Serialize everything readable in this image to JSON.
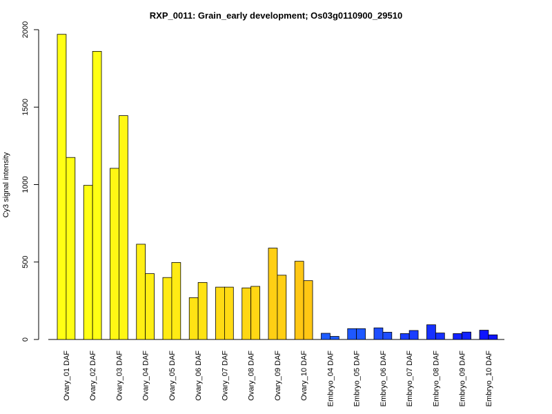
{
  "chart_data": {
    "type": "bar",
    "title": "RXP_0011: Grain_early development; Os03g0110900_29510",
    "xlabel": "",
    "ylabel": "Cy3 signal intensity",
    "ylim": [
      0,
      2000
    ],
    "yticks": [
      "0",
      "500",
      "1000",
      "1500",
      "2000"
    ],
    "grid": false,
    "categories": [
      "Ovary_01 DAF",
      "Ovary_02 DAF",
      "Ovary_03 DAF",
      "Ovary_04 DAF",
      "Ovary_05 DAF",
      "Ovary_06 DAF",
      "Ovary_07 DAF",
      "Ovary_08 DAF",
      "Ovary_09 DAF",
      "Ovary_10 DAF",
      "Embryo_04 DAF",
      "Embryo_05 DAF",
      "Embryo_06 DAF",
      "Embryo_07 DAF",
      "Embryo_08 DAF",
      "Embryo_09 DAF",
      "Embryo_10 DAF"
    ],
    "series": [
      {
        "values": [
          1970,
          995,
          1105,
          615,
          400,
          270,
          338,
          333,
          590,
          505,
          40,
          70,
          75,
          38,
          95,
          38,
          60
        ]
      },
      {
        "values": [
          1175,
          1860,
          1445,
          425,
          497,
          368,
          338,
          343,
          415,
          380,
          20,
          70,
          47,
          58,
          42,
          48,
          30
        ]
      }
    ],
    "colors": [
      "#ffff14",
      "#ffff14",
      "#fff714",
      "#ffef14",
      "#ffeb14",
      "#ffe314",
      "#ffdb14",
      "#ffd714",
      "#ffcf14",
      "#ffc714",
      "#1e5cff",
      "#1e58ff",
      "#1e4eff",
      "#1a3eff",
      "#1630ff",
      "#1222ff",
      "#0e14ff"
    ]
  }
}
